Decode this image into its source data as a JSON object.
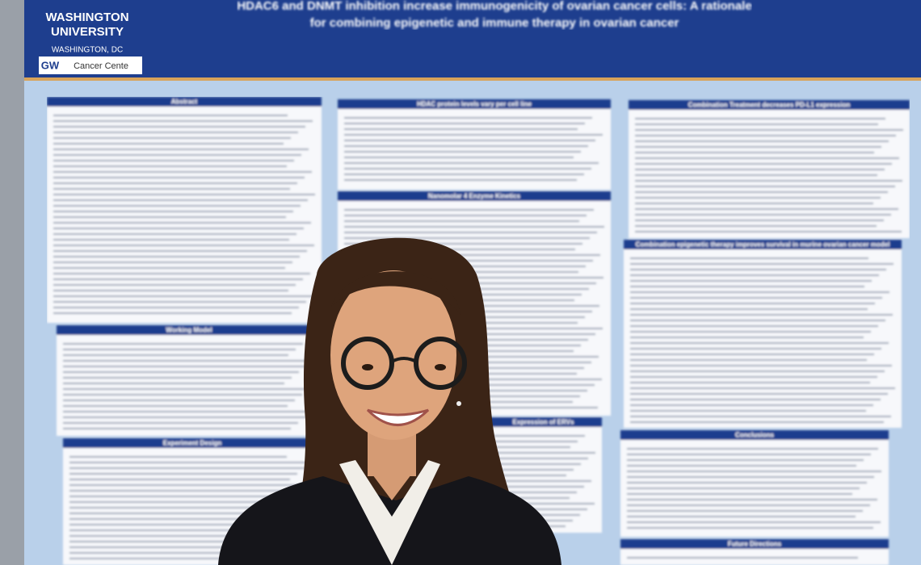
{
  "poster": {
    "title": [
      "HDAC6 and DNMT inhibition increase immunogenicity of ovarian cancer cells: A rationale",
      "for combining epigenetic and immune therapy in ovarian cancer"
    ],
    "logo": {
      "line1": "WASHINGTON",
      "line2": "UNIVERSITY",
      "line3": "WASHINGTON, DC",
      "mark": "GW",
      "center": "Cancer Cente"
    },
    "sections": [
      "Abstract",
      "Working Model",
      "Experiment Design",
      "HDAC protein levels vary per cell line",
      "Nanomolar 4 Enzyme Kinetics",
      "Expression of ERVs",
      "Combination Treatment decreases PD-L1 expression",
      "Combination epigenetic therapy improves survival in murine ovarian cancer model",
      "Conclusions",
      "Future Directions"
    ]
  }
}
